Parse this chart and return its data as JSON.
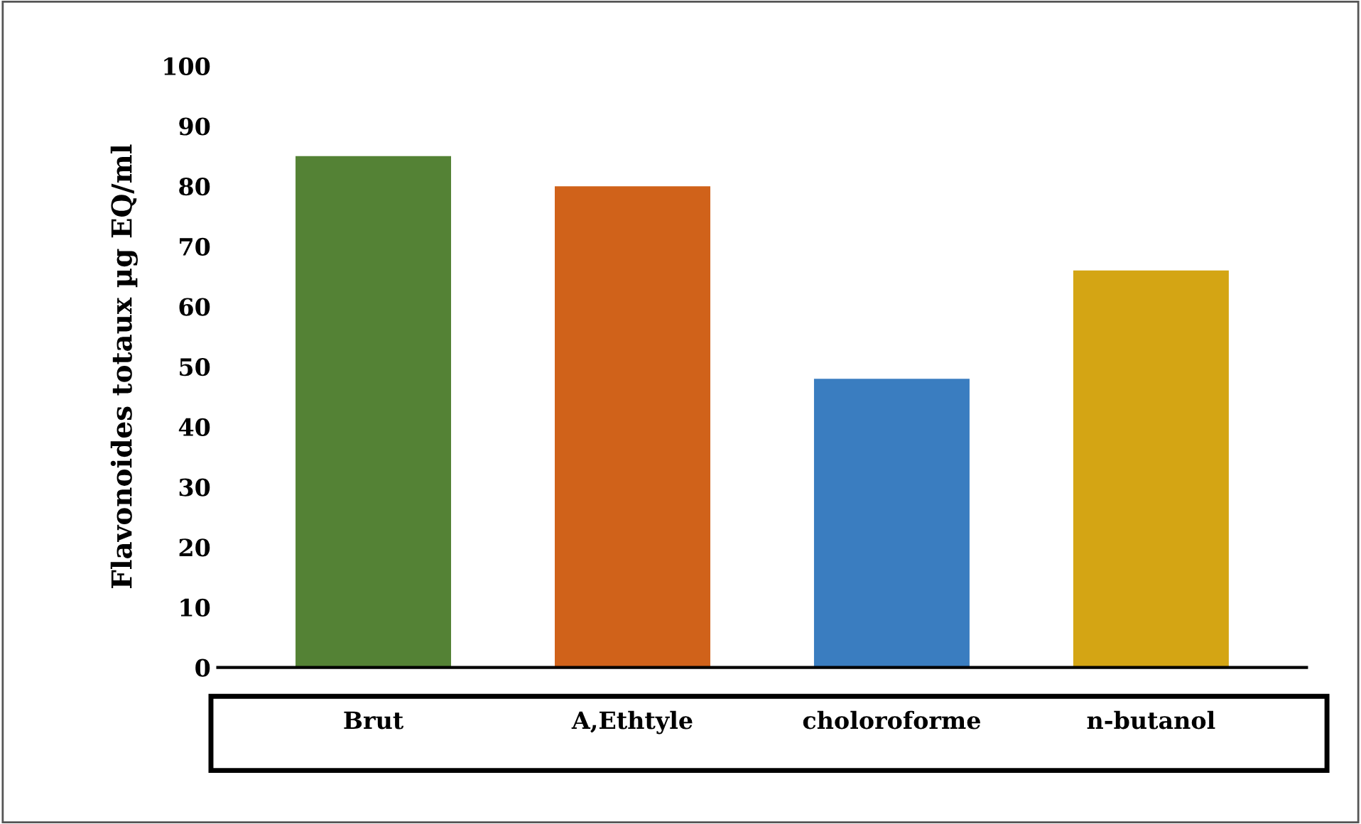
{
  "chart_data": {
    "type": "bar",
    "ylabel": "Flavonoides totaux µg EQ/ml",
    "categories": [
      "Brut",
      "A,Ethtyle",
      "choloroforme",
      "n-butanol"
    ],
    "values": [
      85,
      80,
      48,
      66
    ],
    "colors": [
      "#548235",
      "#d0621a",
      "#3a7dc0",
      "#d4a514"
    ],
    "ylim": [
      0,
      100
    ],
    "yticks": [
      0,
      10,
      20,
      30,
      40,
      50,
      60,
      70,
      80,
      90,
      100
    ],
    "grid": false
  }
}
